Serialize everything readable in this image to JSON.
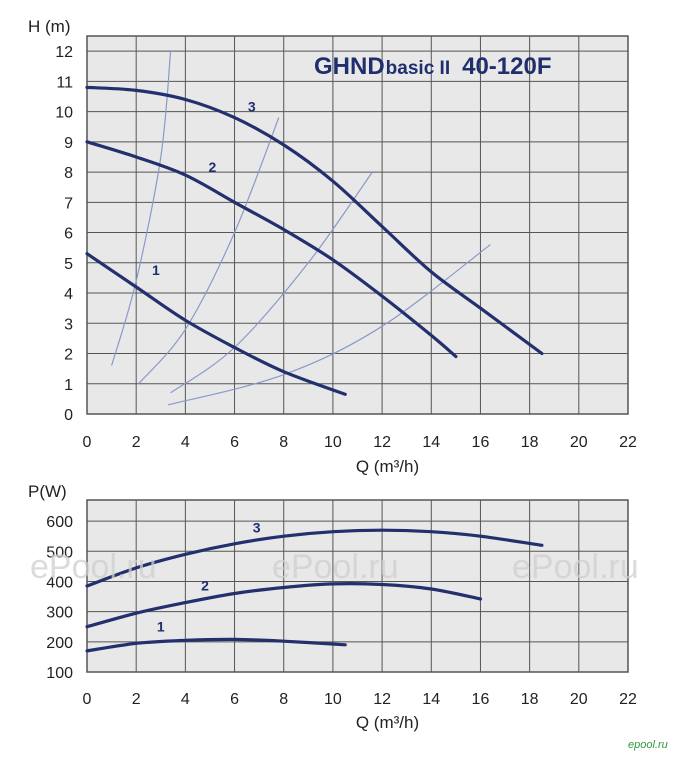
{
  "watermarks": [
    "ePool.ru",
    "ePool.ru",
    "ePool.ru"
  ],
  "logo_text": "epool.ru",
  "colors": {
    "curve": "#22306e",
    "grid": "#555555",
    "background": "#e8e8e8",
    "system_curve": "#8a9ac8"
  },
  "chart_data": [
    {
      "type": "line",
      "title": "GHNDbasic II  40-120F",
      "title_parts": [
        "GHND",
        "basic II",
        "40-120F"
      ],
      "xlabel": "Q (m³/h)",
      "ylabel": "H (m)",
      "xlim": [
        0,
        22
      ],
      "ylim": [
        0,
        12.5
      ],
      "xticks": [
        "0",
        "2",
        "4",
        "6",
        "8",
        "10",
        "12",
        "14",
        "16",
        "18",
        "20",
        "22"
      ],
      "yticks": [
        "0",
        "1",
        "2",
        "3",
        "4",
        "5",
        "6",
        "7",
        "8",
        "9",
        "10",
        "11",
        "12"
      ],
      "grid": true,
      "series": [
        {
          "name": "1",
          "x": [
            0,
            2,
            4,
            6,
            8,
            10.5
          ],
          "y": [
            5.3,
            4.2,
            3.1,
            2.2,
            1.4,
            0.65
          ]
        },
        {
          "name": "2",
          "x": [
            0,
            2,
            4,
            6,
            8,
            10,
            12,
            14,
            15
          ],
          "y": [
            9.0,
            8.5,
            7.9,
            7.0,
            6.1,
            5.1,
            3.9,
            2.6,
            1.9
          ]
        },
        {
          "name": "3",
          "x": [
            0,
            2,
            4,
            6,
            8,
            10,
            12,
            14,
            16,
            18.5
          ],
          "y": [
            10.8,
            10.7,
            10.4,
            9.8,
            8.9,
            7.7,
            6.2,
            4.7,
            3.5,
            2.0
          ]
        }
      ],
      "system_curves": [
        {
          "x": [
            1,
            2,
            3,
            3.4
          ],
          "y": [
            1.6,
            4.4,
            8.5,
            12
          ]
        },
        {
          "x": [
            2.1,
            4,
            6,
            7.8
          ],
          "y": [
            1.0,
            2.8,
            6.0,
            9.8
          ]
        },
        {
          "x": [
            3.4,
            6,
            9,
            11.6
          ],
          "y": [
            0.7,
            2.2,
            5.0,
            8.0
          ]
        },
        {
          "x": [
            3.3,
            8,
            12,
            16.4
          ],
          "y": [
            0.3,
            1.3,
            2.9,
            5.6
          ]
        }
      ]
    },
    {
      "type": "line",
      "xlabel": "Q (m³/h)",
      "ylabel": "P(W)",
      "xlim": [
        0,
        22
      ],
      "ylim": [
        100,
        670
      ],
      "xticks": [
        "0",
        "2",
        "4",
        "6",
        "8",
        "10",
        "12",
        "14",
        "16",
        "18",
        "20",
        "22"
      ],
      "yticks": [
        "100",
        "200",
        "300",
        "400",
        "500",
        "600"
      ],
      "grid": true,
      "series": [
        {
          "name": "1",
          "x": [
            0,
            2,
            4,
            6,
            8,
            10.5
          ],
          "y": [
            170,
            195,
            205,
            208,
            202,
            190
          ]
        },
        {
          "name": "2",
          "x": [
            0,
            2,
            4,
            6,
            8,
            10,
            12,
            14,
            16
          ],
          "y": [
            250,
            295,
            330,
            360,
            380,
            392,
            390,
            375,
            342
          ]
        },
        {
          "name": "3",
          "x": [
            0,
            2,
            4,
            6,
            8,
            10,
            12,
            14,
            16,
            18.5
          ],
          "y": [
            385,
            445,
            490,
            525,
            550,
            565,
            570,
            565,
            550,
            520
          ]
        }
      ]
    }
  ]
}
